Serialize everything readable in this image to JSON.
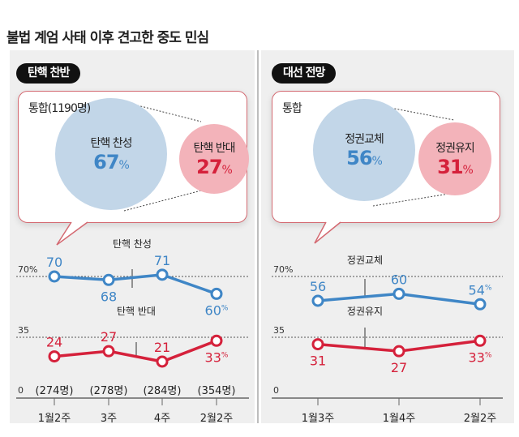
{
  "title": "불법 계엄 사태 이후 견고한 중도 민심",
  "colors": {
    "favor": "#3f86c6",
    "oppose": "#d5213b",
    "favor_circle": "#c2d6e8",
    "oppose_circle": "#f3b3ba"
  },
  "left": {
    "pill": "탄핵 찬반",
    "bubble": {
      "title": "통합(1190명)",
      "big": {
        "label": "탄핵 찬성",
        "value": "67",
        "unit": "%"
      },
      "small": {
        "label": "탄핵 반대",
        "value": "27",
        "unit": "%"
      }
    }
  },
  "right": {
    "pill": "대선 전망",
    "bubble": {
      "title": "통합",
      "big": {
        "label": "정권교체",
        "value": "56",
        "unit": "%"
      },
      "small": {
        "label": "정권유지",
        "value": "31",
        "unit": "%"
      }
    }
  },
  "chart_data": [
    {
      "type": "line",
      "ylim": [
        0,
        70
      ],
      "yticks": [
        "0",
        "35",
        "70%"
      ],
      "categories": [
        "1월2주",
        "3주",
        "4주",
        "2월2주"
      ],
      "sample_sizes": [
        "(274명)",
        "(278명)",
        "(284명)",
        "(354명)"
      ],
      "series": [
        {
          "name": "탄핵 찬성",
          "values": [
            70,
            68,
            71,
            60
          ],
          "color": "#3f86c6"
        },
        {
          "name": "탄핵 반대",
          "values": [
            24,
            27,
            21,
            33
          ],
          "color": "#d5213b"
        }
      ]
    },
    {
      "type": "line",
      "ylim": [
        0,
        70
      ],
      "yticks": [
        "0",
        "35",
        "70%"
      ],
      "categories": [
        "1월3주",
        "1월4주",
        "2월2주"
      ],
      "series": [
        {
          "name": "정권교체",
          "values": [
            56,
            60,
            54
          ],
          "color": "#3f86c6"
        },
        {
          "name": "정권유지",
          "values": [
            31,
            27,
            33
          ],
          "color": "#d5213b"
        }
      ]
    }
  ]
}
